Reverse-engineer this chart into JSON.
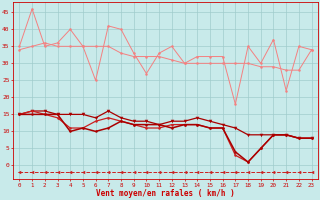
{
  "x": [
    0,
    1,
    2,
    3,
    4,
    5,
    6,
    7,
    8,
    9,
    10,
    11,
    12,
    13,
    14,
    15,
    16,
    17,
    18,
    19,
    20,
    21,
    22,
    23
  ],
  "line1": [
    35,
    46,
    35,
    36,
    40,
    35,
    25,
    41,
    40,
    33,
    27,
    33,
    35,
    30,
    32,
    32,
    32,
    18,
    35,
    30,
    37,
    22,
    35,
    34
  ],
  "line2": [
    34,
    35,
    36,
    35,
    35,
    35,
    35,
    35,
    33,
    32,
    32,
    32,
    31,
    30,
    30,
    30,
    30,
    30,
    30,
    29,
    29,
    28,
    28,
    34
  ],
  "line3": [
    15,
    16,
    16,
    15,
    15,
    15,
    14,
    16,
    14,
    13,
    13,
    12,
    13,
    13,
    14,
    13,
    12,
    11,
    9,
    9,
    9,
    9,
    8,
    8
  ],
  "line4": [
    15,
    16,
    15,
    14,
    11,
    11,
    13,
    14,
    13,
    12,
    11,
    11,
    12,
    12,
    12,
    11,
    11,
    3,
    1,
    5,
    9,
    9,
    8,
    8
  ],
  "line5": [
    15,
    15,
    15,
    15,
    10,
    11,
    10,
    11,
    13,
    12,
    12,
    12,
    11,
    12,
    12,
    11,
    11,
    4,
    1,
    5,
    9,
    9,
    8,
    8
  ],
  "line6_dashed": [
    -2,
    -2,
    -2,
    -2,
    -2,
    -2,
    -2,
    -2,
    -2,
    -2,
    -2,
    -2,
    -2,
    -2,
    -2,
    -2,
    -2,
    -2,
    -2,
    -2,
    -2,
    -2,
    -2,
    -2
  ],
  "color_light_pink": "#f48080",
  "color_dark_red": "#aa0000",
  "color_medium_red": "#cc2020",
  "color_dashed": "#cc2020",
  "background_color": "#c8eaea",
  "grid_color": "#a0cccc",
  "xlabel": "Vent moyen/en rafales ( km/h )",
  "ylim": [
    -4,
    48
  ],
  "xlim": [
    -0.5,
    23.5
  ],
  "xlabel_color": "#cc0000",
  "yticks": [
    0,
    5,
    10,
    15,
    20,
    25,
    30,
    35,
    40,
    45
  ],
  "figsize": [
    3.2,
    2.0
  ],
  "dpi": 100
}
